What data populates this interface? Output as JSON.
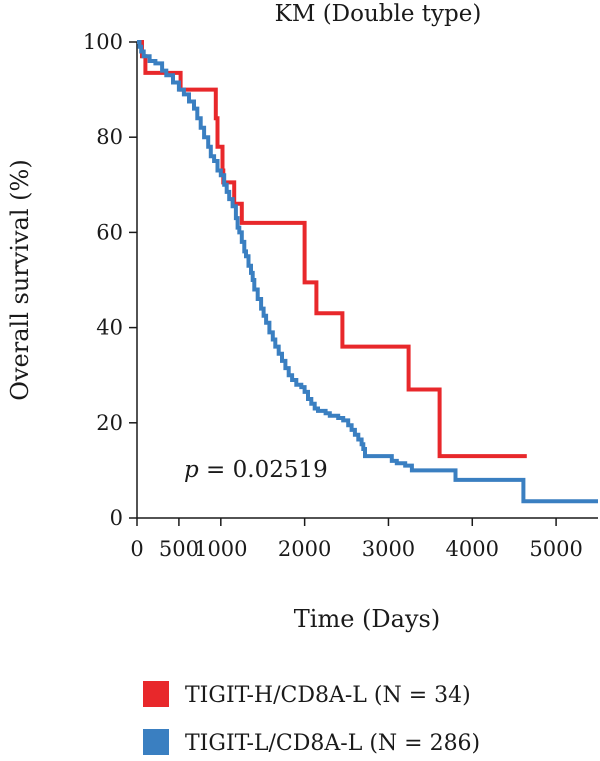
{
  "chart_data": {
    "type": "line",
    "title": "KM (Double type)",
    "xlabel": "Time (Days)",
    "ylabel": "Overall survival (%)",
    "xlim": [
      0,
      5500
    ],
    "ylim": [
      0,
      100
    ],
    "x_ticks": [
      0,
      500,
      1000,
      2000,
      3000,
      4000,
      5000
    ],
    "y_ticks": [
      0,
      20,
      40,
      60,
      80,
      100
    ],
    "grid": false,
    "step": true,
    "annotation": {
      "prefix": "p",
      "text": " = 0.02519"
    },
    "legend": {
      "placement": "bottom"
    },
    "series": [
      {
        "name": "TIGIT-H/CD8A-L (N = 34)",
        "color": "#e8282b",
        "points": [
          [
            0,
            100
          ],
          [
            60,
            97
          ],
          [
            100,
            93.5
          ],
          [
            510,
            93.5
          ],
          [
            520,
            90
          ],
          [
            930,
            90
          ],
          [
            940,
            84
          ],
          [
            960,
            78
          ],
          [
            1020,
            73
          ],
          [
            1030,
            70.5
          ],
          [
            1150,
            70.5
          ],
          [
            1160,
            66
          ],
          [
            1240,
            66
          ],
          [
            1250,
            62
          ],
          [
            1990,
            62
          ],
          [
            2000,
            49.5
          ],
          [
            2130,
            49.5
          ],
          [
            2140,
            43
          ],
          [
            2440,
            43
          ],
          [
            2450,
            36
          ],
          [
            3230,
            36
          ],
          [
            3240,
            27
          ],
          [
            3600,
            27
          ],
          [
            3610,
            13
          ],
          [
            4650,
            13
          ]
        ]
      },
      {
        "name": "TIGIT-L/CD8A-L (N = 286)",
        "color": "#3a7fc1",
        "points": [
          [
            0,
            100
          ],
          [
            30,
            99
          ],
          [
            50,
            98
          ],
          [
            80,
            97
          ],
          [
            150,
            96
          ],
          [
            220,
            95.5
          ],
          [
            300,
            94
          ],
          [
            350,
            93
          ],
          [
            430,
            91.5
          ],
          [
            500,
            90
          ],
          [
            560,
            89
          ],
          [
            620,
            87.5
          ],
          [
            680,
            86
          ],
          [
            720,
            84
          ],
          [
            760,
            82
          ],
          [
            800,
            80
          ],
          [
            850,
            78
          ],
          [
            880,
            76
          ],
          [
            920,
            75
          ],
          [
            960,
            73
          ],
          [
            1000,
            72
          ],
          [
            1040,
            70
          ],
          [
            1070,
            68.5
          ],
          [
            1100,
            67
          ],
          [
            1140,
            65.5
          ],
          [
            1180,
            63
          ],
          [
            1200,
            61
          ],
          [
            1220,
            60
          ],
          [
            1250,
            58
          ],
          [
            1280,
            56
          ],
          [
            1300,
            55
          ],
          [
            1330,
            53
          ],
          [
            1360,
            51.5
          ],
          [
            1380,
            50
          ],
          [
            1400,
            48
          ],
          [
            1440,
            46
          ],
          [
            1480,
            44
          ],
          [
            1510,
            42.5
          ],
          [
            1540,
            41
          ],
          [
            1580,
            39
          ],
          [
            1620,
            37.5
          ],
          [
            1650,
            36
          ],
          [
            1690,
            34.5
          ],
          [
            1730,
            33
          ],
          [
            1770,
            31.5
          ],
          [
            1810,
            30
          ],
          [
            1850,
            29
          ],
          [
            1900,
            28
          ],
          [
            1960,
            27.5
          ],
          [
            2000,
            26.5
          ],
          [
            2040,
            25
          ],
          [
            2080,
            24
          ],
          [
            2120,
            23
          ],
          [
            2160,
            22.5
          ],
          [
            2250,
            22
          ],
          [
            2300,
            21.5
          ],
          [
            2400,
            21
          ],
          [
            2460,
            20.5
          ],
          [
            2520,
            19.5
          ],
          [
            2560,
            18.5
          ],
          [
            2600,
            17.5
          ],
          [
            2640,
            16.5
          ],
          [
            2680,
            15.5
          ],
          [
            2700,
            14.5
          ],
          [
            2720,
            13
          ],
          [
            3000,
            13
          ],
          [
            3040,
            12
          ],
          [
            3100,
            11.5
          ],
          [
            3200,
            11
          ],
          [
            3280,
            10
          ],
          [
            3760,
            10
          ],
          [
            3800,
            8
          ],
          [
            4600,
            8
          ],
          [
            4610,
            3.5
          ],
          [
            5500,
            3.5
          ]
        ]
      }
    ]
  }
}
